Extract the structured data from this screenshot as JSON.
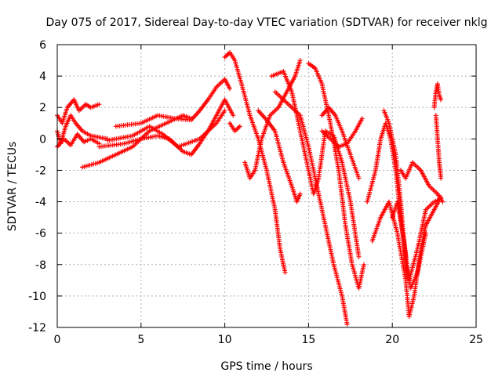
{
  "chart_data": {
    "type": "scatter",
    "title": "Day 075 of 2017, Sidereal Day-to-day VTEC variation (SDTVAR) for receiver nklg",
    "xlabel": "GPS time / hours",
    "ylabel": "SDTVAR / TECUs",
    "xlim": [
      0,
      25
    ],
    "ylim": [
      -12,
      6
    ],
    "xticks": [
      "0",
      "5",
      "10",
      "15",
      "20",
      "25"
    ],
    "yticks": [
      "6",
      "4",
      "2",
      "0",
      "-2",
      "-4",
      "-6",
      "-8",
      "-10",
      "-12"
    ],
    "grid": true,
    "marker": "+",
    "color": "#ff0000",
    "series": [
      {
        "x": [
          0.0,
          0.3,
          0.6,
          1.0,
          1.3,
          1.7,
          2.0,
          2.5
        ],
        "y": [
          1.5,
          1.0,
          2.0,
          2.5,
          1.8,
          2.2,
          2.0,
          2.2
        ]
      },
      {
        "x": [
          0.0,
          0.2,
          0.5,
          0.8,
          1.1,
          1.5,
          2.0,
          2.5,
          3.0
        ],
        "y": [
          0.5,
          -0.3,
          0.8,
          1.5,
          1.0,
          0.5,
          0.2,
          0.1,
          0.0
        ]
      },
      {
        "x": [
          0.0,
          0.4,
          0.8,
          1.2,
          1.6,
          2.0,
          2.5
        ],
        "y": [
          -0.5,
          0.0,
          -0.4,
          0.3,
          -0.2,
          0.0,
          -0.3
        ]
      },
      {
        "x": [
          1.5,
          2.5,
          3.5,
          4.5,
          5.5,
          6.5,
          7.5,
          8.0
        ],
        "y": [
          -1.8,
          -1.5,
          -1.0,
          -0.5,
          0.5,
          1.0,
          1.5,
          1.3
        ]
      },
      {
        "x": [
          3.5,
          5.0,
          6.0,
          7.0,
          8.0,
          8.5,
          9.0,
          9.5,
          10.0,
          10.3
        ],
        "y": [
          0.8,
          1.0,
          1.5,
          1.3,
          1.2,
          1.8,
          2.5,
          3.3,
          3.8,
          3.2
        ]
      },
      {
        "x": [
          2.5,
          4.0,
          5.0,
          6.0,
          6.7,
          7.5,
          8.0,
          8.5,
          9.0,
          9.5,
          10.0,
          10.5
        ],
        "y": [
          -0.5,
          -0.3,
          0.0,
          0.2,
          0.0,
          -0.8,
          -1.0,
          -0.3,
          0.5,
          1.5,
          2.5,
          1.5
        ]
      },
      {
        "x": [
          3.0,
          4.5,
          5.5,
          6.3,
          7.2,
          8.5,
          9.0,
          9.5,
          10.0
        ],
        "y": [
          -0.1,
          0.2,
          0.8,
          0.3,
          -0.5,
          0.0,
          0.5,
          1.0,
          1.8
        ]
      },
      {
        "x": [
          10.0,
          10.3,
          10.6,
          11.0,
          11.5,
          12.0,
          12.5,
          13.0,
          13.3,
          13.6
        ],
        "y": [
          5.2,
          5.5,
          5.0,
          3.5,
          1.5,
          0.0,
          -2.0,
          -4.5,
          -7.0,
          -8.5
        ]
      },
      {
        "x": [
          10.3,
          10.6,
          10.9
        ],
        "y": [
          1.0,
          0.5,
          0.8
        ]
      },
      {
        "x": [
          11.2,
          11.5,
          11.8,
          12.2,
          12.7,
          13.2,
          13.7,
          14.2,
          14.5
        ],
        "y": [
          -1.5,
          -2.5,
          -2.0,
          0.0,
          1.5,
          2.0,
          3.0,
          4.0,
          5.0
        ]
      },
      {
        "x": [
          12.8,
          13.5,
          14.0,
          14.5,
          15.0,
          15.3,
          15.6,
          16.0,
          16.5,
          17.0,
          17.5,
          18.0
        ],
        "y": [
          4.0,
          4.3,
          3.0,
          0.5,
          -2.0,
          -3.5,
          -2.5,
          0.5,
          0.2,
          -1.5,
          -4.0,
          -7.5
        ]
      },
      {
        "x": [
          12.0,
          12.5,
          13.0,
          13.5,
          14.0,
          14.3,
          14.5
        ],
        "y": [
          1.8,
          1.2,
          0.5,
          -1.5,
          -3.0,
          -4.0,
          -3.5
        ]
      },
      {
        "x": [
          13.0,
          13.5,
          14.0,
          14.5,
          15.0,
          15.5,
          16.0,
          16.5,
          17.0,
          17.3
        ],
        "y": [
          3.0,
          2.5,
          2.0,
          1.5,
          -0.5,
          -3.0,
          -5.5,
          -8.0,
          -10.0,
          -11.8
        ]
      },
      {
        "x": [
          15.0,
          15.4,
          15.8,
          16.3,
          16.8,
          17.2,
          17.6,
          18.0,
          18.3
        ],
        "y": [
          4.8,
          4.5,
          3.5,
          1.0,
          -2.0,
          -5.5,
          -8.0,
          -9.5,
          -8.0
        ]
      },
      {
        "x": [
          15.8,
          16.3,
          16.8,
          17.3,
          17.8,
          18.2
        ],
        "y": [
          0.5,
          0.0,
          -0.5,
          -0.3,
          0.5,
          1.3
        ]
      },
      {
        "x": [
          15.8,
          16.2,
          16.6,
          17.0,
          17.5,
          18.0
        ],
        "y": [
          1.5,
          2.0,
          1.5,
          0.5,
          -1.0,
          -2.5
        ]
      },
      {
        "x": [
          18.5,
          19.0,
          19.3,
          19.6,
          19.9,
          20.2,
          20.5,
          20.8
        ],
        "y": [
          -4.0,
          -2.0,
          0.0,
          1.0,
          0.0,
          -2.0,
          -5.0,
          -7.5
        ]
      },
      {
        "x": [
          18.8,
          19.3,
          19.8,
          20.3,
          20.8,
          21.0,
          21.3,
          21.7,
          22.0,
          22.5,
          22.9
        ],
        "y": [
          -6.5,
          -5.0,
          -4.0,
          -6.0,
          -9.0,
          -11.3,
          -10.0,
          -7.0,
          -5.5,
          -4.5,
          -3.7
        ]
      },
      {
        "x": [
          19.5,
          19.8,
          20.2,
          20.5,
          20.8,
          21.1,
          21.5,
          22.0
        ],
        "y": [
          1.8,
          1.0,
          -1.0,
          -4.0,
          -8.0,
          -9.5,
          -8.5,
          -6.0
        ]
      },
      {
        "x": [
          20.0,
          20.3,
          20.7,
          21.0,
          21.5,
          22.0,
          22.5,
          22.9
        ],
        "y": [
          -5.0,
          -4.0,
          -6.5,
          -9.0,
          -7.0,
          -4.5,
          -4.0,
          -3.8
        ]
      },
      {
        "x": [
          20.5,
          20.8,
          21.2,
          21.7,
          22.2,
          22.7,
          23.0
        ],
        "y": [
          -2.0,
          -2.5,
          -1.5,
          -2.0,
          -3.0,
          -3.5,
          -4.0
        ]
      },
      {
        "x": [
          22.5,
          22.6,
          22.7,
          22.8,
          22.9
        ],
        "y": [
          2.0,
          3.0,
          3.5,
          2.8,
          2.5
        ]
      },
      {
        "x": [
          22.6,
          22.8,
          22.9
        ],
        "y": [
          1.5,
          -1.5,
          -2.5
        ]
      }
    ]
  }
}
